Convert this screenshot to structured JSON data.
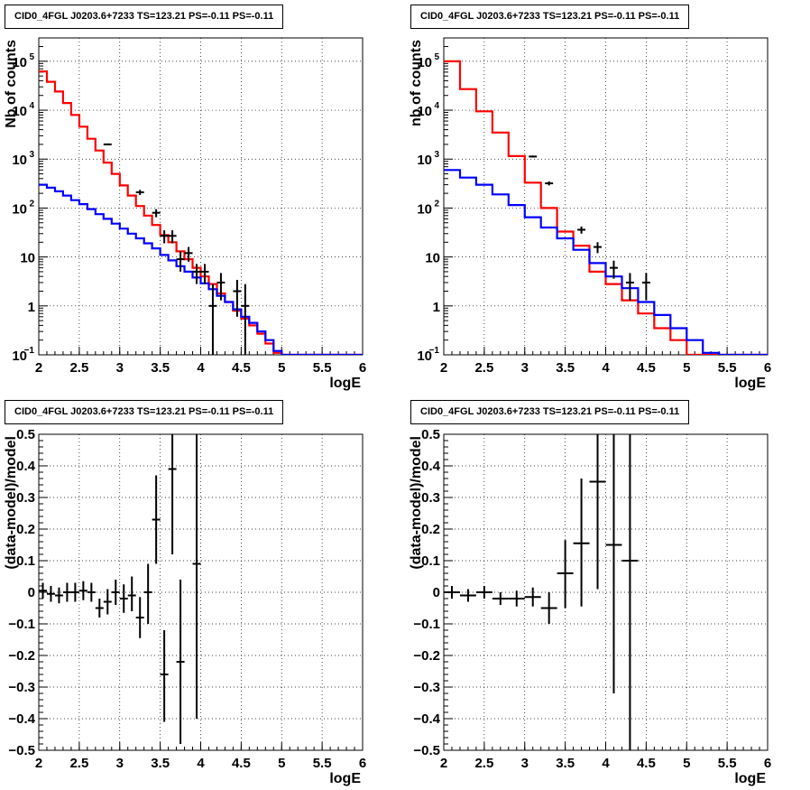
{
  "chart_data": [
    {
      "type": "line",
      "title": "CID0_4FGL J0203.6+7233 TS=123.21 PS=-0.11 PS=-0.11",
      "xlabel": "logE",
      "ylabel": "Nb of counts",
      "xlim": [
        2,
        6
      ],
      "ylim": [
        0.1,
        300000
      ],
      "yscale": "log",
      "grid": true,
      "x_ticks": [
        "2",
        "2.5",
        "3",
        "3.5",
        "4",
        "4.5",
        "5",
        "5.5",
        "6"
      ],
      "y_ticks": [
        {
          "value": 0.1,
          "base": "10",
          "exp": "−1"
        },
        {
          "value": 1,
          "label": "1"
        },
        {
          "value": 10,
          "label": "10"
        },
        {
          "value": 100,
          "base": "10",
          "exp": "2"
        },
        {
          "value": 1000,
          "base": "10",
          "exp": "3"
        },
        {
          "value": 10000,
          "base": "10",
          "exp": "4"
        },
        {
          "value": 100000,
          "base": "10",
          "exp": "5"
        }
      ],
      "bin_edges": [
        2.0,
        2.1,
        2.2,
        2.3,
        2.4,
        2.5,
        2.6,
        2.7,
        2.8,
        2.9,
        3.0,
        3.1,
        3.2,
        3.3,
        3.4,
        3.5,
        3.6,
        3.7,
        3.8,
        3.9,
        4.0,
        4.1,
        4.2,
        4.3,
        4.4,
        4.5,
        4.6,
        4.7,
        4.8,
        4.9,
        5.0,
        5.1,
        5.2,
        5.3,
        5.4,
        5.5,
        5.6,
        5.7,
        5.8,
        5.9,
        6.0
      ],
      "series": [
        {
          "color": "#ff0000",
          "style": "step",
          "values": [
            62000,
            38000,
            24000,
            14000,
            8000,
            4600,
            2600,
            1500,
            850,
            500,
            290,
            180,
            110,
            70,
            45,
            28,
            20,
            13,
            9,
            6,
            4,
            2.8,
            1.8,
            1.2,
            0.8,
            0.55,
            0.4,
            0.27,
            0.17,
            0.11,
            0.1,
            0.1,
            0.1,
            0.1,
            0.1,
            0.1,
            0.1,
            0.1,
            0.1,
            0.1
          ]
        },
        {
          "color": "#0000ff",
          "style": "step",
          "values": [
            300,
            260,
            220,
            180,
            145,
            120,
            95,
            75,
            60,
            48,
            38,
            30,
            24,
            19,
            15,
            11,
            8.5,
            6.5,
            5,
            3.8,
            2.9,
            2.2,
            1.6,
            1.2,
            0.85,
            0.6,
            0.45,
            0.3,
            0.2,
            0.12,
            0.1,
            0.1,
            0.1,
            0.1,
            0.1,
            0.1,
            0.1,
            0.1,
            0.1,
            0.1
          ]
        },
        {
          "color": "#000000",
          "style": "errorbar",
          "points": [
            {
              "x": 2.85,
              "y": 2000,
              "lo": 1910,
              "hi": 2090
            },
            {
              "x": 3.25,
              "y": 210,
              "lo": 185,
              "hi": 235
            },
            {
              "x": 3.45,
              "y": 80,
              "lo": 65,
              "hi": 95
            },
            {
              "x": 3.55,
              "y": 27,
              "lo": 19,
              "hi": 35
            },
            {
              "x": 3.65,
              "y": 27,
              "lo": 19,
              "hi": 35
            },
            {
              "x": 3.75,
              "y": 9,
              "lo": 5,
              "hi": 13
            },
            {
              "x": 3.85,
              "y": 12,
              "lo": 8,
              "hi": 16
            },
            {
              "x": 3.95,
              "y": 5,
              "lo": 2.8,
              "hi": 7.2
            },
            {
              "x": 4.05,
              "y": 5,
              "lo": 2.8,
              "hi": 7.2
            },
            {
              "x": 4.15,
              "y": 1,
              "lo": 0.1,
              "hi": 2.8
            },
            {
              "x": 4.25,
              "y": 3,
              "lo": 1.3,
              "hi": 4.7
            },
            {
              "x": 4.45,
              "y": 2,
              "lo": 0.6,
              "hi": 3.4
            },
            {
              "x": 4.55,
              "y": 1,
              "lo": 0.1,
              "hi": 2.8
            }
          ]
        }
      ]
    },
    {
      "type": "line",
      "title": "CID0_4FGL J0203.6+7233 TS=123.21 PS=-0.11 PS=-0.11",
      "xlabel": "logE",
      "ylabel": "nb of counts",
      "xlim": [
        2,
        6
      ],
      "ylim": [
        0.1,
        300000
      ],
      "yscale": "log",
      "grid": true,
      "x_ticks": [
        "2",
        "2.5",
        "3",
        "3.5",
        "4",
        "4.5",
        "5",
        "5.5",
        "6"
      ],
      "y_ticks": [
        {
          "value": 0.1,
          "base": "10",
          "exp": "−1"
        },
        {
          "value": 1,
          "label": "1"
        },
        {
          "value": 10,
          "label": "10"
        },
        {
          "value": 100,
          "base": "10",
          "exp": "2"
        },
        {
          "value": 1000,
          "base": "10",
          "exp": "3"
        },
        {
          "value": 10000,
          "base": "10",
          "exp": "4"
        },
        {
          "value": 100000,
          "base": "10",
          "exp": "5"
        }
      ],
      "bin_edges": [
        2.0,
        2.2,
        2.4,
        2.6,
        2.8,
        3.0,
        3.2,
        3.4,
        3.6,
        3.8,
        4.0,
        4.2,
        4.4,
        4.6,
        4.8,
        5.0,
        5.2,
        5.4,
        5.6,
        5.8,
        6.0
      ],
      "series": [
        {
          "color": "#ff0000",
          "style": "step",
          "values": [
            100000,
            27000,
            9500,
            3500,
            1150,
            330,
            100,
            33,
            17,
            5,
            2.8,
            1.3,
            0.7,
            0.35,
            0.2,
            0.1,
            0.1,
            0.1,
            0.1,
            0.1
          ]
        },
        {
          "color": "#0000ff",
          "style": "step",
          "values": [
            600,
            420,
            300,
            190,
            115,
            65,
            40,
            24,
            14,
            7.5,
            4,
            2.3,
            1.2,
            0.65,
            0.35,
            0.2,
            0.11,
            0.1,
            0.1,
            0.1
          ]
        },
        {
          "color": "#000000",
          "style": "errorbar",
          "points": [
            {
              "x": 3.1,
              "y": 1130,
              "lo": 1080,
              "hi": 1180
            },
            {
              "x": 3.3,
              "y": 320,
              "lo": 290,
              "hi": 350
            },
            {
              "x": 3.7,
              "y": 36,
              "lo": 30,
              "hi": 42
            },
            {
              "x": 3.9,
              "y": 16,
              "lo": 12,
              "hi": 20
            },
            {
              "x": 4.1,
              "y": 6,
              "lo": 3.6,
              "hi": 8.4
            },
            {
              "x": 4.3,
              "y": 3,
              "lo": 1.3,
              "hi": 4.7
            },
            {
              "x": 4.5,
              "y": 3,
              "lo": 1.3,
              "hi": 4.7
            }
          ]
        }
      ]
    },
    {
      "type": "scatter",
      "title": "CID0_4FGL J0203.6+7233 TS=123.21 PS=-0.11 PS=-0.11",
      "xlabel": "logE",
      "ylabel": "(data-model)/model",
      "xlim": [
        2,
        6
      ],
      "ylim": [
        -0.5,
        0.5
      ],
      "yscale": "linear",
      "grid": true,
      "x_ticks": [
        "2",
        "2.5",
        "3",
        "3.5",
        "4",
        "4.5",
        "5",
        "5.5",
        "6"
      ],
      "y_ticks": [
        "−0.5",
        "−0.4",
        "−0.3",
        "−0.2",
        "−0.1",
        "0",
        "0.1",
        "0.2",
        "0.3",
        "0.4",
        "0.5"
      ],
      "x_halfwidth": 0.05,
      "series": [
        {
          "color": "#000000",
          "style": "errorbar",
          "points": [
            {
              "x": 2.05,
              "y": 0.005,
              "lo": -0.02,
              "hi": 0.03
            },
            {
              "x": 2.15,
              "y": -0.005,
              "lo": -0.03,
              "hi": 0.02
            },
            {
              "x": 2.25,
              "y": -0.01,
              "lo": -0.035,
              "hi": 0.015
            },
            {
              "x": 2.35,
              "y": 0.0,
              "lo": -0.03,
              "hi": 0.03
            },
            {
              "x": 2.45,
              "y": 0.0,
              "lo": -0.03,
              "hi": 0.03
            },
            {
              "x": 2.55,
              "y": 0.005,
              "lo": -0.025,
              "hi": 0.035
            },
            {
              "x": 2.65,
              "y": 0.0,
              "lo": -0.03,
              "hi": 0.03
            },
            {
              "x": 2.75,
              "y": -0.05,
              "lo": -0.08,
              "hi": -0.02
            },
            {
              "x": 2.85,
              "y": -0.03,
              "lo": -0.07,
              "hi": 0.01
            },
            {
              "x": 2.95,
              "y": 0.0,
              "lo": -0.04,
              "hi": 0.04
            },
            {
              "x": 3.05,
              "y": -0.02,
              "lo": -0.065,
              "hi": 0.025
            },
            {
              "x": 3.15,
              "y": -0.01,
              "lo": -0.06,
              "hi": 0.05
            },
            {
              "x": 3.25,
              "y": -0.08,
              "lo": -0.145,
              "hi": -0.015
            },
            {
              "x": 3.35,
              "y": 0.0,
              "lo": -0.1,
              "hi": 0.09
            },
            {
              "x": 3.45,
              "y": 0.23,
              "lo": 0.09,
              "hi": 0.37
            },
            {
              "x": 3.55,
              "y": -0.26,
              "lo": -0.41,
              "hi": -0.12
            },
            {
              "x": 3.65,
              "y": 0.39,
              "lo": 0.12,
              "hi": 0.5
            },
            {
              "x": 3.75,
              "y": -0.22,
              "lo": -0.48,
              "hi": 0.04
            },
            {
              "x": 3.95,
              "y": 0.09,
              "lo": -0.4,
              "hi": 0.5
            }
          ]
        }
      ]
    },
    {
      "type": "scatter",
      "title": "CID0_4FGL J0203.6+7233 TS=123.21 PS=-0.11 PS=-0.11",
      "xlabel": "logE",
      "ylabel": "(data-model)/model",
      "xlim": [
        2,
        6
      ],
      "ylim": [
        -0.5,
        0.5
      ],
      "yscale": "linear",
      "grid": true,
      "x_ticks": [
        "2",
        "2.5",
        "3",
        "3.5",
        "4",
        "4.5",
        "5",
        "5.5",
        "6"
      ],
      "y_ticks": [
        "−0.5",
        "−0.4",
        "−0.3",
        "−0.2",
        "−0.1",
        "0",
        "0.1",
        "0.2",
        "0.3",
        "0.4",
        "0.5"
      ],
      "x_halfwidth": 0.1,
      "series": [
        {
          "color": "#000000",
          "style": "errorbar",
          "points": [
            {
              "x": 2.1,
              "y": 0.0,
              "lo": -0.02,
              "hi": 0.02
            },
            {
              "x": 2.3,
              "y": -0.01,
              "lo": -0.03,
              "hi": 0.01
            },
            {
              "x": 2.5,
              "y": 0.0,
              "lo": -0.02,
              "hi": 0.02
            },
            {
              "x": 2.7,
              "y": -0.02,
              "lo": -0.04,
              "hi": 0.0
            },
            {
              "x": 2.9,
              "y": -0.02,
              "lo": -0.045,
              "hi": 0.005
            },
            {
              "x": 3.1,
              "y": -0.015,
              "lo": -0.045,
              "hi": 0.015
            },
            {
              "x": 3.3,
              "y": -0.05,
              "lo": -0.1,
              "hi": 0.0
            },
            {
              "x": 3.5,
              "y": 0.06,
              "lo": -0.05,
              "hi": 0.165
            },
            {
              "x": 3.7,
              "y": 0.155,
              "lo": -0.045,
              "hi": 0.36
            },
            {
              "x": 3.9,
              "y": 0.35,
              "lo": 0.01,
              "hi": 0.5
            },
            {
              "x": 4.1,
              "y": 0.15,
              "lo": -0.32,
              "hi": 0.5
            },
            {
              "x": 4.3,
              "y": 0.1,
              "lo": -0.5,
              "hi": 0.5
            }
          ]
        }
      ]
    }
  ]
}
